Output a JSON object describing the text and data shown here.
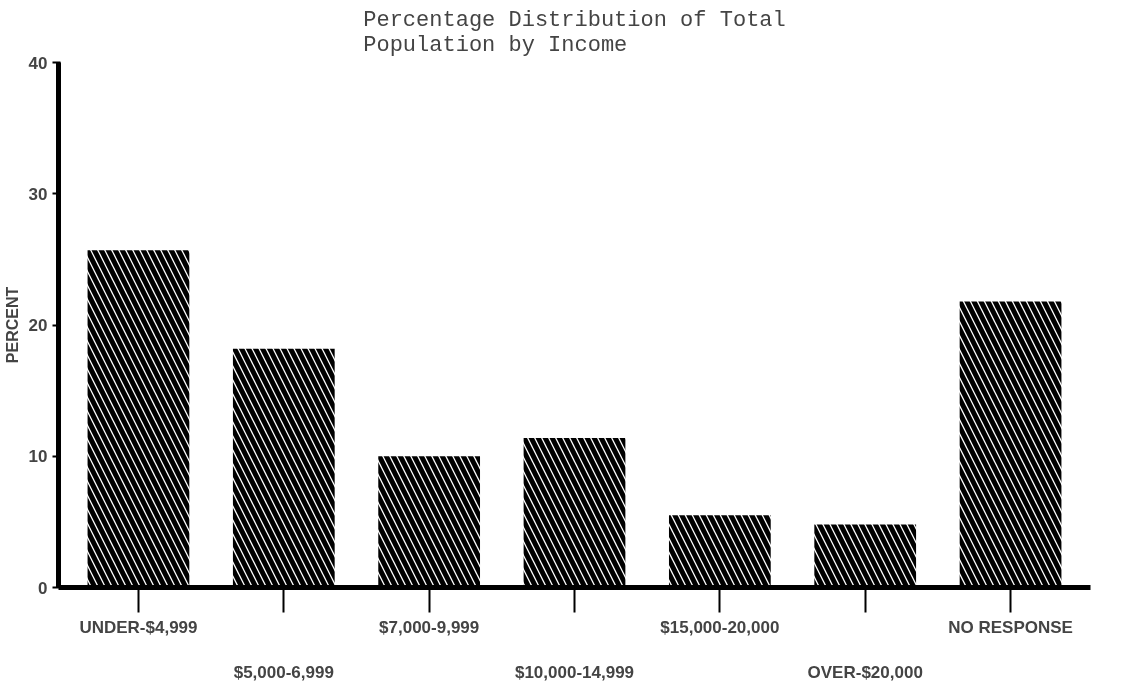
{
  "chart_data": {
    "type": "bar",
    "title": "Percentage Distribution of Total\nPopulation by Income",
    "ylabel": "PERCENT",
    "categories": [
      "UNDER-$4,999",
      "$5,000-6,999",
      "$7,000-9,999",
      "$10,000-14,999",
      "$15,000-20,000",
      "OVER-$20,000",
      "NO RESPONSE"
    ],
    "values": [
      25.7,
      18.2,
      10.0,
      11.4,
      5.5,
      4.8,
      21.8
    ],
    "color": "#000000",
    "ylim": [
      0,
      40
    ],
    "yticks": [
      0,
      10,
      20,
      30,
      40
    ],
    "grid": false
  }
}
